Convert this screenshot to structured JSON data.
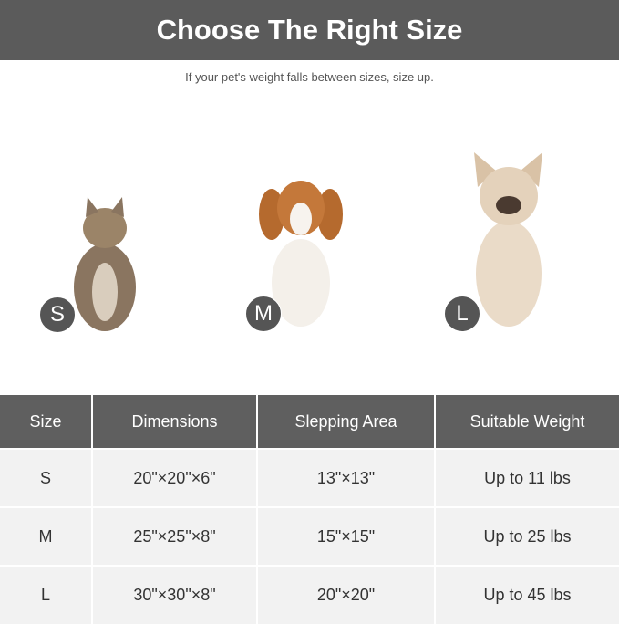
{
  "title": "Choose The Right Size",
  "subtitle": "If your pet's weight falls between sizes, size up.",
  "pets": [
    {
      "badge": "S",
      "animal": "cat"
    },
    {
      "badge": "M",
      "animal": "dog-spaniel"
    },
    {
      "badge": "L",
      "animal": "dog-bulldog"
    }
  ],
  "table": {
    "headers": [
      "Size",
      "Dimensions",
      "Slepping Area",
      "Suitable Weight"
    ],
    "rows": [
      [
        "S",
        "20\"×20\"×6\"",
        "13\"×13\"",
        "Up to 11 lbs"
      ],
      [
        "M",
        "25\"×25\"×8\"",
        "15\"×15\"",
        "Up to 25 lbs"
      ],
      [
        "L",
        "30\"×30\"×8\"",
        "20\"×20\"",
        "Up to 45 lbs"
      ]
    ]
  },
  "colors": {
    "header_bg": "#5b5b5b",
    "badge": "#555555",
    "row_bg": "#f2f2f2"
  }
}
